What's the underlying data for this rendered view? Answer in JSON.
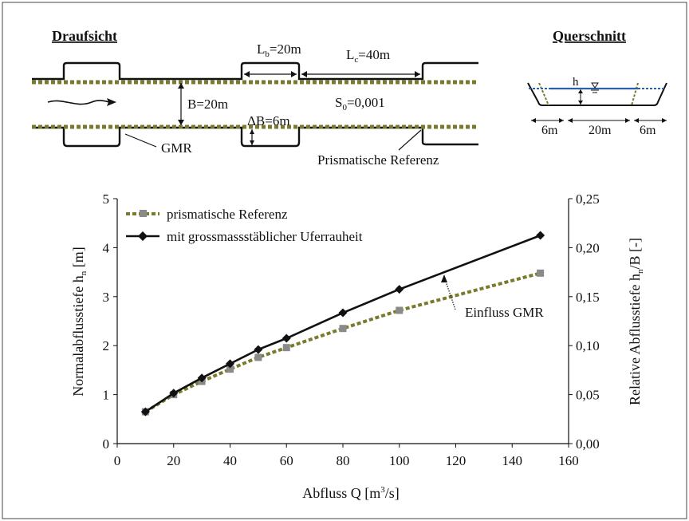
{
  "top": {
    "plan_title": "Draufsicht",
    "section_title": "Querschnitt",
    "lb": {
      "base": "L",
      "sub": "b",
      "rest": "=20m"
    },
    "lc": {
      "base": "L",
      "sub": "c",
      "rest": "=40m"
    },
    "b": "B=20m",
    "db": "ΔB=6m",
    "s0": {
      "base": "S",
      "sub": "0",
      "rest": "=0,001"
    },
    "gmr": "GMR",
    "prism": "Prismatische Referenz",
    "cs_h": "h",
    "cs_w1": "6m",
    "cs_w2": "20m",
    "cs_w3": "6m"
  },
  "chart_data": {
    "type": "line",
    "xlim": [
      0,
      160
    ],
    "ylim": [
      0,
      5
    ],
    "y2lim": [
      0.0,
      0.25
    ],
    "xticks": [
      "0",
      "20",
      "40",
      "60",
      "80",
      "100",
      "120",
      "140",
      "160"
    ],
    "yticks": [
      "0",
      "1",
      "2",
      "3",
      "4",
      "5"
    ],
    "y2ticks": [
      "0,00",
      "0,05",
      "0,10",
      "0,15",
      "0,20",
      "0,25"
    ],
    "xlabel": {
      "pre": "Abfluss Q [m",
      "sup": "3",
      "post": "/s]"
    },
    "ylabel": {
      "pre": "Normalabflusstiefe h",
      "sub": "n",
      "post": " [m]"
    },
    "y2label": {
      "pre": "Relative Abflusstiefe h",
      "sub": "n",
      "post": "/B [-]"
    },
    "legend_position": "top-left",
    "series": [
      {
        "name": "prismatische Referenz",
        "color": "#7a7a2c",
        "marker": "square",
        "x": [
          10,
          20,
          30,
          40,
          50,
          60,
          80,
          100,
          150
        ],
        "y": [
          0.65,
          1.0,
          1.27,
          1.52,
          1.76,
          1.96,
          2.35,
          2.72,
          3.48
        ]
      },
      {
        "name": "mit grossmassstäblicher Uferrauheit",
        "color": "#111111",
        "marker": "diamond",
        "x": [
          10,
          20,
          30,
          40,
          50,
          60,
          80,
          100,
          150
        ],
        "y": [
          0.65,
          1.03,
          1.34,
          1.63,
          1.92,
          2.15,
          2.67,
          3.15,
          4.25
        ]
      }
    ],
    "annotation": "Einfluss GMR"
  }
}
